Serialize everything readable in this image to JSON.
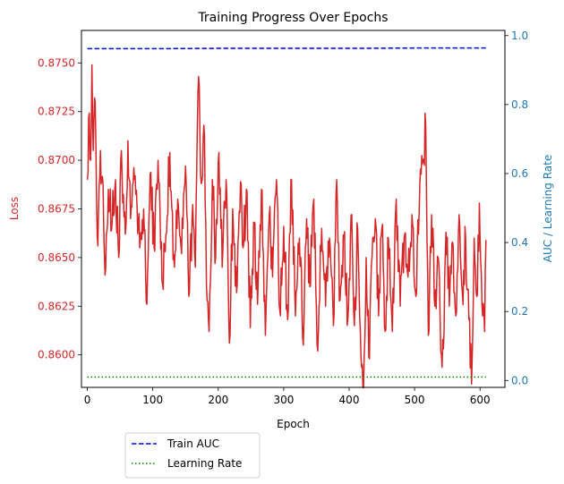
{
  "chart_data": {
    "type": "line",
    "title": "Training Progress Over Epochs",
    "xlabel": "Epoch",
    "ylabel_left": "Loss",
    "ylabel_right": "AUC / Learning Rate",
    "xlim": [
      -9,
      638
    ],
    "ylim_left": [
      0.85833,
      0.87667
    ],
    "ylim_right": [
      -0.02,
      1.015
    ],
    "xticks": [
      0,
      100,
      200,
      300,
      400,
      500,
      600
    ],
    "yticks_left": [
      0.86,
      0.8625,
      0.865,
      0.8675,
      0.87,
      0.8725,
      0.875
    ],
    "yticks_right": [
      0.0,
      0.2,
      0.4,
      0.6,
      0.8,
      1.0
    ],
    "grid": false,
    "legend_position": "below-left",
    "colors": {
      "loss": "#d62728",
      "auc": "#0000ff",
      "lr": "#008000",
      "right_axis": "#1f77b4"
    },
    "series": [
      {
        "name": "Loss",
        "axis": "left",
        "style": "solid",
        "control_points": [
          [
            0,
            0.869
          ],
          [
            2,
            0.8722
          ],
          [
            5,
            0.87
          ],
          [
            7,
            0.8749
          ],
          [
            9,
            0.8705
          ],
          [
            12,
            0.873
          ],
          [
            14,
            0.8682
          ],
          [
            16,
            0.8656
          ],
          [
            20,
            0.8705
          ],
          [
            24,
            0.8688
          ],
          [
            27,
            0.8641
          ],
          [
            32,
            0.8685
          ],
          [
            37,
            0.8664
          ],
          [
            43,
            0.869
          ],
          [
            48,
            0.865
          ],
          [
            52,
            0.8705
          ],
          [
            58,
            0.8662
          ],
          [
            62,
            0.871
          ],
          [
            66,
            0.867
          ],
          [
            73,
            0.8692
          ],
          [
            80,
            0.8655
          ],
          [
            86,
            0.8675
          ],
          [
            91,
            0.8626
          ],
          [
            96,
            0.8693
          ],
          [
            102,
            0.8655
          ],
          [
            108,
            0.87
          ],
          [
            114,
            0.8638
          ],
          [
            120,
            0.8662
          ],
          [
            126,
            0.8704
          ],
          [
            133,
            0.8645
          ],
          [
            138,
            0.868
          ],
          [
            144,
            0.8652
          ],
          [
            150,
            0.8697
          ],
          [
            156,
            0.8632
          ],
          [
            160,
            0.867
          ],
          [
            165,
            0.8645
          ],
          [
            170,
            0.8743
          ],
          [
            174,
            0.8688
          ],
          [
            178,
            0.8718
          ],
          [
            183,
            0.8628
          ],
          [
            186,
            0.8612
          ],
          [
            191,
            0.869
          ],
          [
            196,
            0.865
          ],
          [
            201,
            0.8704
          ],
          [
            206,
            0.8645
          ],
          [
            212,
            0.869
          ],
          [
            217,
            0.8606
          ],
          [
            222,
            0.8675
          ],
          [
            228,
            0.8632
          ],
          [
            234,
            0.8689
          ],
          [
            238,
            0.8655
          ],
          [
            244,
            0.8684
          ],
          [
            249,
            0.8614
          ],
          [
            255,
            0.8668
          ],
          [
            260,
            0.8626
          ],
          [
            266,
            0.8685
          ],
          [
            272,
            0.861
          ],
          [
            278,
            0.8672
          ],
          [
            283,
            0.864
          ],
          [
            289,
            0.869
          ],
          [
            294,
            0.8623
          ],
          [
            300,
            0.8666
          ],
          [
            306,
            0.8618
          ],
          [
            312,
            0.869
          ],
          [
            318,
            0.862
          ],
          [
            324,
            0.866
          ],
          [
            330,
            0.8605
          ],
          [
            335,
            0.867
          ],
          [
            340,
            0.8635
          ],
          [
            346,
            0.868
          ],
          [
            352,
            0.8602
          ],
          [
            358,
            0.8665
          ],
          [
            364,
            0.8625
          ],
          [
            370,
            0.866
          ],
          [
            376,
            0.8615
          ],
          [
            381,
            0.869
          ],
          [
            386,
            0.8628
          ],
          [
            392,
            0.866
          ],
          [
            398,
            0.8618
          ],
          [
            403,
            0.8672
          ],
          [
            408,
            0.8615
          ],
          [
            413,
            0.8665
          ],
          [
            418,
            0.86
          ],
          [
            422,
            0.8583
          ],
          [
            426,
            0.865
          ],
          [
            431,
            0.8598
          ],
          [
            436,
            0.866
          ],
          [
            440,
            0.867
          ],
          [
            445,
            0.862
          ],
          [
            450,
            0.8665
          ],
          [
            455,
            0.8612
          ],
          [
            460,
            0.866
          ],
          [
            466,
            0.8612
          ],
          [
            472,
            0.868
          ],
          [
            478,
            0.8625
          ],
          [
            484,
            0.866
          ],
          [
            490,
            0.864
          ],
          [
            496,
            0.8672
          ],
          [
            502,
            0.863
          ],
          [
            508,
            0.8688
          ],
          [
            513,
            0.87
          ],
          [
            517,
            0.8718
          ],
          [
            521,
            0.861
          ],
          [
            526,
            0.8672
          ],
          [
            531,
            0.8625
          ],
          [
            536,
            0.865
          ],
          [
            541,
            0.86
          ],
          [
            544,
            0.8603
          ],
          [
            548,
            0.8663
          ],
          [
            553,
            0.8625
          ],
          [
            558,
            0.8658
          ],
          [
            563,
            0.862
          ],
          [
            568,
            0.8672
          ],
          [
            573,
            0.8632
          ],
          [
            578,
            0.866
          ],
          [
            583,
            0.8618
          ],
          [
            587,
            0.8585
          ],
          [
            591,
            0.866
          ],
          [
            595,
            0.863
          ],
          [
            599,
            0.8678
          ],
          [
            603,
            0.8625
          ],
          [
            607,
            0.8612
          ],
          [
            609,
            0.8659
          ]
        ]
      },
      {
        "name": "Train AUC",
        "axis": "right",
        "style": "dashed",
        "points": [
          [
            0,
            0.962
          ],
          [
            100,
            0.962
          ],
          [
            200,
            0.963
          ],
          [
            300,
            0.963
          ],
          [
            400,
            0.963
          ],
          [
            500,
            0.964
          ],
          [
            609,
            0.964
          ]
        ]
      },
      {
        "name": "Learning Rate",
        "axis": "right",
        "style": "dotted",
        "points": [
          [
            0,
            0.01
          ],
          [
            609,
            0.01
          ]
        ]
      }
    ]
  }
}
